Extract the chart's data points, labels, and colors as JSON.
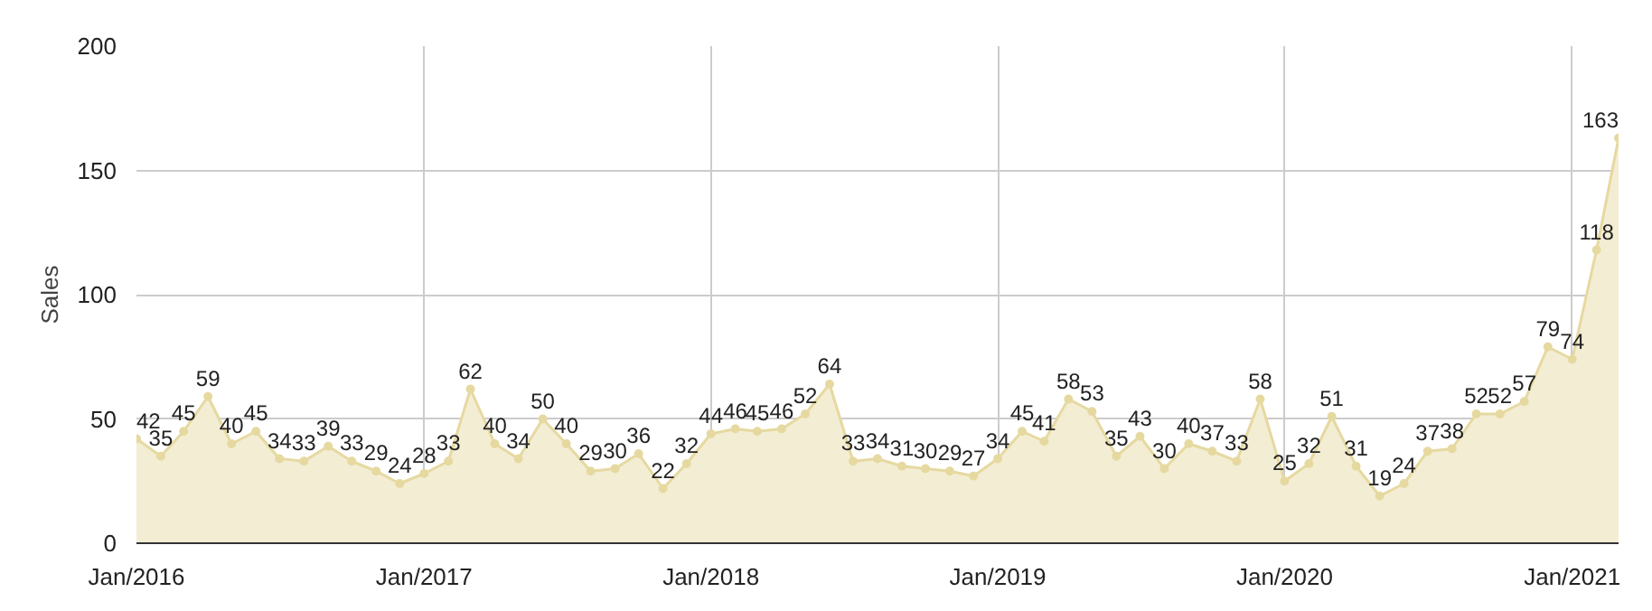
{
  "chart_data": {
    "type": "area",
    "ylabel": "Sales",
    "x": [
      "2016-01",
      "2016-02",
      "2016-03",
      "2016-04",
      "2016-05",
      "2016-06",
      "2016-07",
      "2016-08",
      "2016-09",
      "2016-10",
      "2016-11",
      "2016-12",
      "2017-01",
      "2017-02",
      "2017-03",
      "2017-04",
      "2017-05",
      "2017-06",
      "2017-07",
      "2017-08",
      "2017-09",
      "2017-10",
      "2017-11",
      "2017-12",
      "2018-01",
      "2018-02",
      "2018-03",
      "2018-04",
      "2018-05",
      "2018-06",
      "2018-07",
      "2018-08",
      "2018-09",
      "2018-10",
      "2018-11",
      "2018-12",
      "2019-01",
      "2019-02",
      "2019-03",
      "2019-04",
      "2019-05",
      "2019-06",
      "2019-07",
      "2019-08",
      "2019-09",
      "2019-10",
      "2019-11",
      "2019-12",
      "2020-01",
      "2020-02",
      "2020-03",
      "2020-04",
      "2020-05",
      "2020-06",
      "2020-07",
      "2020-08",
      "2020-09",
      "2020-10",
      "2020-11",
      "2020-12",
      "2021-01",
      "2021-02",
      "2021-03"
    ],
    "series": [
      {
        "color": "#e6d9a0",
        "values": [
          42,
          35,
          45,
          59,
          40,
          45,
          34,
          33,
          39,
          33,
          29,
          24,
          28,
          33,
          62,
          40,
          34,
          50,
          40,
          29,
          30,
          36,
          22,
          32,
          44,
          46,
          45,
          46,
          52,
          64,
          33,
          34,
          31,
          30,
          29,
          27,
          34,
          45,
          41,
          58,
          53,
          35,
          43,
          30,
          40,
          37,
          33,
          58,
          25,
          32,
          51,
          31,
          19,
          24,
          37,
          38,
          52,
          52,
          57,
          79,
          74,
          118,
          163
        ]
      }
    ],
    "xlim": [
      "2016-01",
      "2021-03"
    ],
    "xticks": [
      {
        "value": "2016-01",
        "label": "Jan/2016"
      },
      {
        "value": "2017-01",
        "label": "Jan/2017"
      },
      {
        "value": "2018-01",
        "label": "Jan/2018"
      },
      {
        "value": "2019-01",
        "label": "Jan/2019"
      },
      {
        "value": "2020-01",
        "label": "Jan/2020"
      },
      {
        "value": "2021-01",
        "label": "Jan/2021"
      }
    ],
    "ylim": [
      0,
      200
    ],
    "yticks": [
      0,
      50,
      100,
      150,
      200
    ],
    "grid": true,
    "marker": "circle",
    "data_labels": true
  }
}
